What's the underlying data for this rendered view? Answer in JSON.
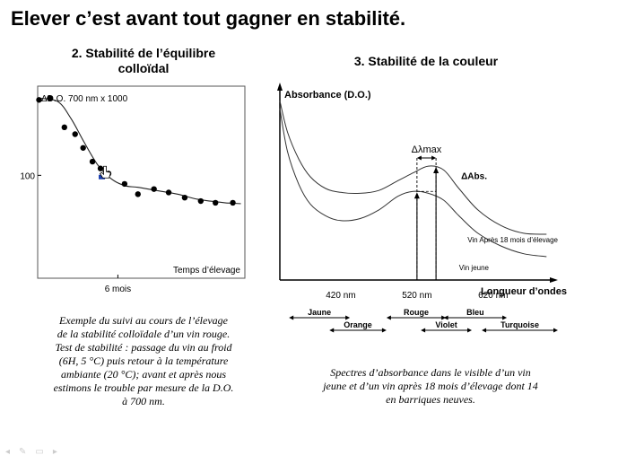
{
  "slide": {
    "title": "Elever c’est avant tout gagner en stabilité."
  },
  "left": {
    "title_line1": "2. Stabilité de l’équilibre",
    "title_line2": "colloïdal",
    "caption_lines": [
      "Exemple du suivi au cours de l’élevage",
      "de la stabilité colloïdale d’un vin rouge.",
      "Test de stabilité : passage du vin au froid",
      "(6H, 5 °C) puis retour à la température",
      "ambiante (20 °C); avant et après nous",
      "estimons le trouble par mesure de la D.O.",
      "à 700 nm."
    ]
  },
  "right": {
    "title": "3. Stabilité de la couleur",
    "caption_lines": [
      "Spectres d’absorbance dans le visible d’un vin",
      "jeune et d’un vin après 18 mois d’élevage dont 14",
      "en barriques neuves."
    ]
  },
  "chart_data": [
    {
      "type": "scatter",
      "ylabel": "ΔD.O. 700 nm x 1000",
      "xlabel": "Temps d’élevage",
      "x_ticks": [
        {
          "value": 6,
          "label": "6 mois"
        }
      ],
      "y_ticks": [
        {
          "value": 100,
          "label": "100"
        }
      ],
      "xlim": [
        0,
        15.5
      ],
      "ylim": [
        40,
        152
      ],
      "points": [
        {
          "x": 0.1,
          "y": 144
        },
        {
          "x": 0.9,
          "y": 145
        },
        {
          "x": 2.0,
          "y": 128
        },
        {
          "x": 2.8,
          "y": 124
        },
        {
          "x": 3.4,
          "y": 116
        },
        {
          "x": 4.1,
          "y": 108
        },
        {
          "x": 4.7,
          "y": 104
        },
        {
          "x": 5.3,
          "y": 101
        },
        {
          "x": 6.5,
          "y": 95
        },
        {
          "x": 7.5,
          "y": 89
        },
        {
          "x": 8.7,
          "y": 92
        },
        {
          "x": 9.8,
          "y": 90
        },
        {
          "x": 11.0,
          "y": 87
        },
        {
          "x": 12.2,
          "y": 85
        },
        {
          "x": 13.3,
          "y": 84
        },
        {
          "x": 14.6,
          "y": 84
        }
      ],
      "marker_point": {
        "x": 4.8,
        "y": 99
      },
      "fit_curve": [
        {
          "x": 0.0,
          "y": 145
        },
        {
          "x": 1.5,
          "y": 143
        },
        {
          "x": 2.5,
          "y": 133
        },
        {
          "x": 3.5,
          "y": 119
        },
        {
          "x": 4.5,
          "y": 106
        },
        {
          "x": 5.5,
          "y": 98
        },
        {
          "x": 6.5,
          "y": 94
        },
        {
          "x": 7.5,
          "y": 93
        },
        {
          "x": 9.0,
          "y": 91
        },
        {
          "x": 10.5,
          "y": 89
        },
        {
          "x": 12.0,
          "y": 86
        },
        {
          "x": 14.0,
          "y": 84
        },
        {
          "x": 15.2,
          "y": 83.5
        }
      ],
      "grid": false
    },
    {
      "type": "line",
      "ylabel": "Absorbance (D.O.)",
      "xlabel": "Longueur d’ondes",
      "x_ticks": [
        {
          "value": 420,
          "label": "420 nm"
        },
        {
          "value": 520,
          "label": "520 nm"
        },
        {
          "value": 620,
          "label": "620 nm"
        }
      ],
      "xlim": [
        340,
        705
      ],
      "ylim": [
        0,
        100
      ],
      "series": [
        {
          "name": "Vin Après 18 mois d’élevage",
          "x": [
            340,
            350,
            365,
            380,
            400,
            420,
            445,
            470,
            495,
            515,
            535,
            555,
            575,
            600,
            630,
            660,
            690
          ],
          "y": [
            92,
            76,
            62,
            53,
            47,
            45,
            44.5,
            46,
            51,
            55,
            58.5,
            56.5,
            47,
            36,
            28,
            24,
            23.5
          ]
        },
        {
          "name": "Vin jeune",
          "x": [
            340,
            350,
            365,
            380,
            400,
            420,
            445,
            470,
            495,
            515,
            535,
            555,
            575,
            600,
            630,
            660,
            690
          ],
          "y": [
            88,
            66,
            49,
            39,
            33,
            30.5,
            31.5,
            36,
            43,
            45.5,
            44.5,
            41,
            33,
            24,
            17.5,
            13.5,
            12
          ]
        }
      ],
      "annotations": [
        {
          "label": "Δλmax",
          "from_x": 520,
          "to_x": 545
        },
        {
          "label": "ΔAbs."
        }
      ],
      "color_bands": [
        {
          "label": "Jaune",
          "from": 352,
          "to": 432
        },
        {
          "label": "Orange",
          "from": 405,
          "to": 480
        },
        {
          "label": "Rouge",
          "from": 480,
          "to": 558
        },
        {
          "label": "Violet",
          "from": 525,
          "to": 592
        },
        {
          "label": "Bleu",
          "from": 555,
          "to": 638
        },
        {
          "label": "Turquoise",
          "from": 605,
          "to": 705
        }
      ],
      "grid": false
    }
  ]
}
